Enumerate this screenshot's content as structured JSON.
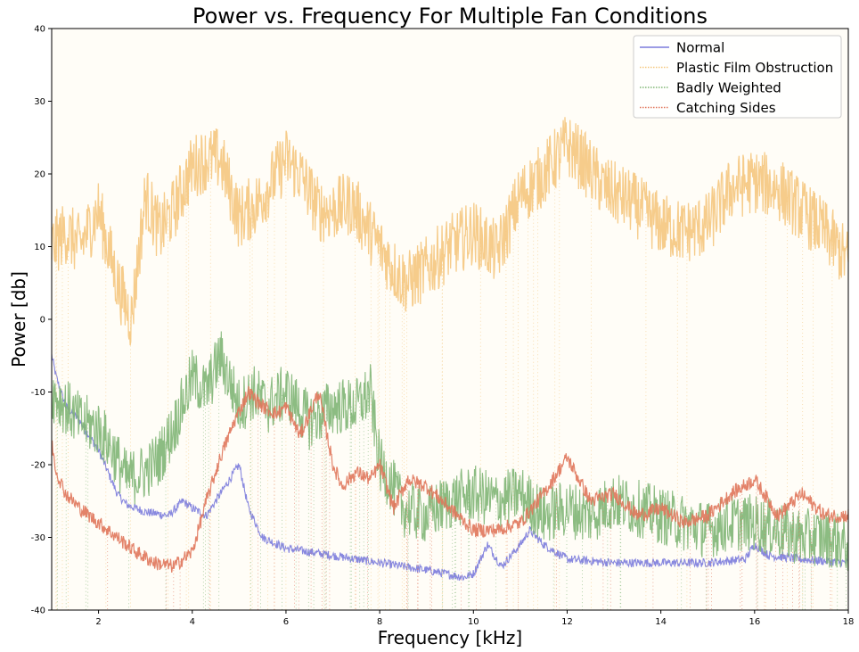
{
  "chart_data": {
    "type": "line",
    "title": "Power vs. Frequency For Multiple Fan Conditions",
    "xlabel": "Frequency [kHz]",
    "ylabel": "Power [db]",
    "xlim": [
      1,
      18
    ],
    "ylim": [
      -40,
      40
    ],
    "xticks": [
      "2",
      "4",
      "6",
      "8",
      "10",
      "12",
      "14",
      "16",
      "18"
    ],
    "yticks": [
      "-40",
      "-30",
      "-20",
      "-10",
      "0",
      "10",
      "20",
      "30",
      "40"
    ],
    "grid": false,
    "legend_position": "top-right",
    "plot_background": "#fffdf7",
    "series": [
      {
        "name": "Normal",
        "color": "#7b7bdb",
        "style": "solid",
        "x": [
          1,
          1.1,
          1.3,
          1.6,
          2.0,
          2.2,
          2.4,
          2.6,
          3.0,
          3.5,
          3.8,
          4.0,
          4.3,
          4.6,
          4.8,
          5.0,
          5.2,
          5.5,
          6.0,
          6.5,
          7.0,
          8.0,
          9.0,
          9.8,
          10.0,
          10.3,
          10.6,
          11.0,
          11.2,
          11.5,
          12.0,
          13.0,
          14.0,
          15.0,
          15.8,
          16.0,
          16.3,
          17.0,
          18.0
        ],
        "y": [
          -5,
          -8,
          -12,
          -14,
          -18,
          -21,
          -24,
          -25.5,
          -26.5,
          -27,
          -25,
          -26,
          -27,
          -24,
          -22,
          -20,
          -26,
          -30,
          -31.5,
          -32,
          -32.5,
          -33.5,
          -34.5,
          -35.5,
          -35,
          -31,
          -34,
          -31,
          -29,
          -31,
          -33,
          -33.5,
          -33.5,
          -33.5,
          -33,
          -31,
          -32.5,
          -33,
          -33.5
        ]
      },
      {
        "name": "Plastic Film Obstruction",
        "color": "#f5c77e",
        "style": "dotted",
        "x": [
          1,
          1.3,
          1.6,
          2.0,
          2.4,
          2.7,
          3.0,
          3.3,
          3.6,
          4.0,
          4.3,
          4.6,
          5.0,
          5.4,
          5.8,
          6.0,
          6.3,
          6.7,
          7.0,
          7.4,
          8.0,
          8.4,
          8.6,
          9.0,
          9.5,
          10.0,
          10.5,
          11.0,
          11.5,
          12.0,
          12.3,
          12.8,
          13.4,
          14.0,
          14.5,
          15.0,
          15.5,
          16.0,
          16.5,
          17.0,
          17.5,
          18.0
        ],
        "y": [
          10,
          12,
          10,
          15,
          5,
          0,
          17,
          12,
          15,
          21,
          22,
          22,
          14,
          16,
          20,
          22,
          20,
          15,
          15,
          16,
          10,
          6,
          5,
          7,
          10,
          12,
          9,
          17,
          20,
          24,
          22,
          18,
          16,
          13,
          12,
          13,
          18,
          19,
          18,
          15,
          12,
          8
        ]
      },
      {
        "name": "Badly Weighted",
        "color": "#7fb574",
        "style": "dotted",
        "x": [
          1,
          1.3,
          1.6,
          2.0,
          2.3,
          2.6,
          3.0,
          3.3,
          3.6,
          4.0,
          4.3,
          4.6,
          5.0,
          5.3,
          5.6,
          6.0,
          6.5,
          7.0,
          7.5,
          7.8,
          8.0,
          8.2,
          8.5,
          9.0,
          9.5,
          10.0,
          10.5,
          11.0,
          11.5,
          12.0,
          12.5,
          13.0,
          13.5,
          14.0,
          14.5,
          15.0,
          15.5,
          16.0,
          16.5,
          17.0,
          17.5,
          18.0
        ],
        "y": [
          -10,
          -12,
          -14,
          -15,
          -18,
          -22,
          -21,
          -19,
          -15,
          -8,
          -10,
          -5,
          -12,
          -10,
          -12,
          -10,
          -14,
          -12,
          -12,
          -10,
          -20,
          -22,
          -26,
          -27,
          -25,
          -24,
          -25,
          -24,
          -27,
          -26,
          -27,
          -25,
          -26,
          -27,
          -28,
          -29,
          -28,
          -28,
          -29,
          -30,
          -30,
          -31
        ]
      },
      {
        "name": "Catching Sides",
        "color": "#e0755a",
        "style": "dotted",
        "x": [
          1,
          1.1,
          1.3,
          1.6,
          2.0,
          2.4,
          2.8,
          3.2,
          3.6,
          4.0,
          4.3,
          4.6,
          4.9,
          5.2,
          5.5,
          5.8,
          6.0,
          6.3,
          6.7,
          7.0,
          7.2,
          7.5,
          7.8,
          8.0,
          8.3,
          8.6,
          9.0,
          9.5,
          10.0,
          10.5,
          11.0,
          11.5,
          12.0,
          12.5,
          13.0,
          13.5,
          14.0,
          14.5,
          15.0,
          15.5,
          16.0,
          16.5,
          17.0,
          17.5,
          18.0
        ],
        "y": [
          -17,
          -21,
          -24,
          -26,
          -28,
          -30,
          -32,
          -33.5,
          -34,
          -32,
          -25,
          -19,
          -14,
          -10,
          -12,
          -13,
          -12,
          -16,
          -10,
          -20,
          -23,
          -21,
          -22,
          -20,
          -26,
          -22,
          -23,
          -26,
          -29,
          -29,
          -28,
          -24,
          -19,
          -25,
          -24,
          -27,
          -26,
          -28,
          -27,
          -24,
          -22,
          -27,
          -24,
          -27,
          -27
        ]
      }
    ]
  }
}
